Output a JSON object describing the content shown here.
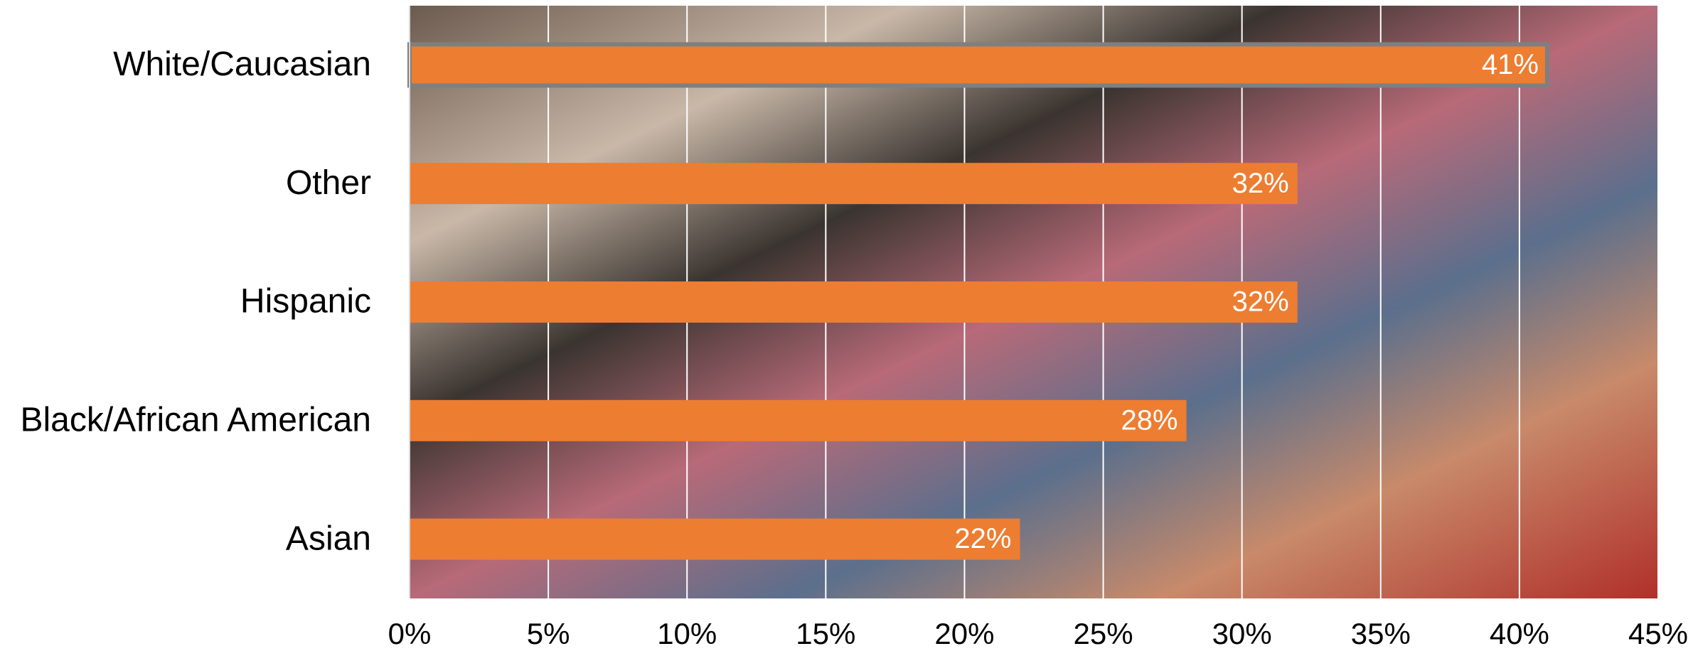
{
  "chart_data": {
    "type": "bar",
    "orientation": "horizontal",
    "categories": [
      "White/Caucasian",
      "Other",
      "Hispanic",
      "Black/African American",
      "Asian"
    ],
    "values": [
      41,
      32,
      32,
      28,
      22
    ],
    "value_labels": [
      "41%",
      "32%",
      "32%",
      "28%",
      "22%"
    ],
    "color": "#ED7D31",
    "xlim": [
      0,
      45
    ],
    "xticks": [
      {
        "value": 0,
        "label": "0%"
      },
      {
        "value": 5,
        "label": "5%"
      },
      {
        "value": 10,
        "label": "10%"
      },
      {
        "value": 15,
        "label": "15%"
      },
      {
        "value": 20,
        "label": "20%"
      },
      {
        "value": 25,
        "label": "25%"
      },
      {
        "value": 30,
        "label": "30%"
      },
      {
        "value": 35,
        "label": "35%"
      },
      {
        "value": 40,
        "label": "40%"
      },
      {
        "value": 45,
        "label": "45%"
      }
    ],
    "grid": true
  }
}
